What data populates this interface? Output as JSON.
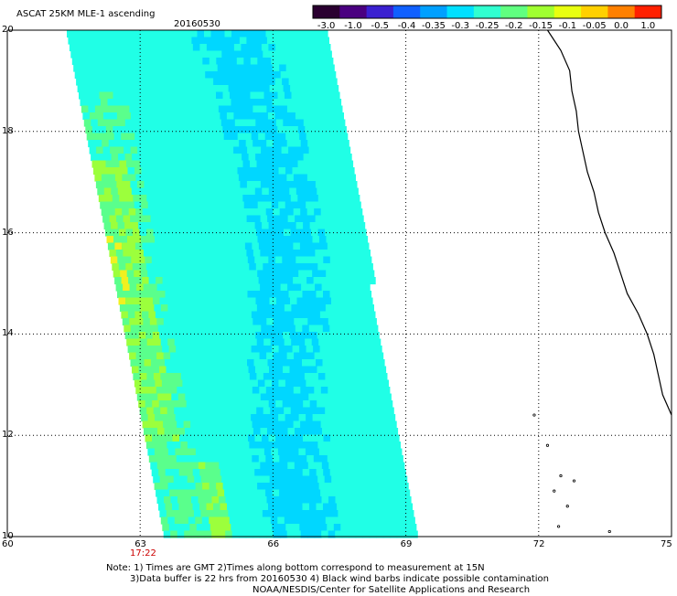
{
  "header": {
    "title": "ASCAT 25KM MLE-1 ascending",
    "date": "20160530"
  },
  "colorbar": {
    "labels": [
      "-3.0",
      "-1.0",
      "-0.5",
      "-0.4",
      "-0.35",
      "-0.3",
      "-0.25",
      "-0.2",
      "-0.15",
      "-0.1",
      "-0.05",
      "0.0",
      "1.0"
    ],
    "colors": [
      "#2a0030",
      "#4a0080",
      "#3a20d0",
      "#1060ff",
      "#00a0ff",
      "#00e0ff",
      "#30ffd0",
      "#60ff80",
      "#a0ff30",
      "#e8ff10",
      "#ffd000",
      "#ff8000",
      "#ff2000"
    ]
  },
  "map": {
    "lon_range": [
      60,
      75
    ],
    "lat_range": [
      10,
      20
    ],
    "x_ticks": [
      "60",
      "63",
      "66",
      "69",
      "72",
      "75"
    ],
    "y_ticks": [
      "20",
      "18",
      "16",
      "14",
      "12",
      "10"
    ],
    "time_label": "17:22",
    "swath_colors": {
      "low": "#00d7ff",
      "mid": "#20ffe6",
      "high": "#5aff8c",
      "higher": "#9cff3c",
      "peak": "#f0f020"
    },
    "coast_color": "#000000"
  },
  "notes": {
    "line1": "Note: 1) Times are GMT 2)Times along bottom correspond to measurement at 15N",
    "line2": "3)Data buffer is 22 hrs from 20160530 4) Black wind barbs indicate possible contamination",
    "line3": "NOAA/NESDIS/Center for Satellite Applications and Research"
  }
}
